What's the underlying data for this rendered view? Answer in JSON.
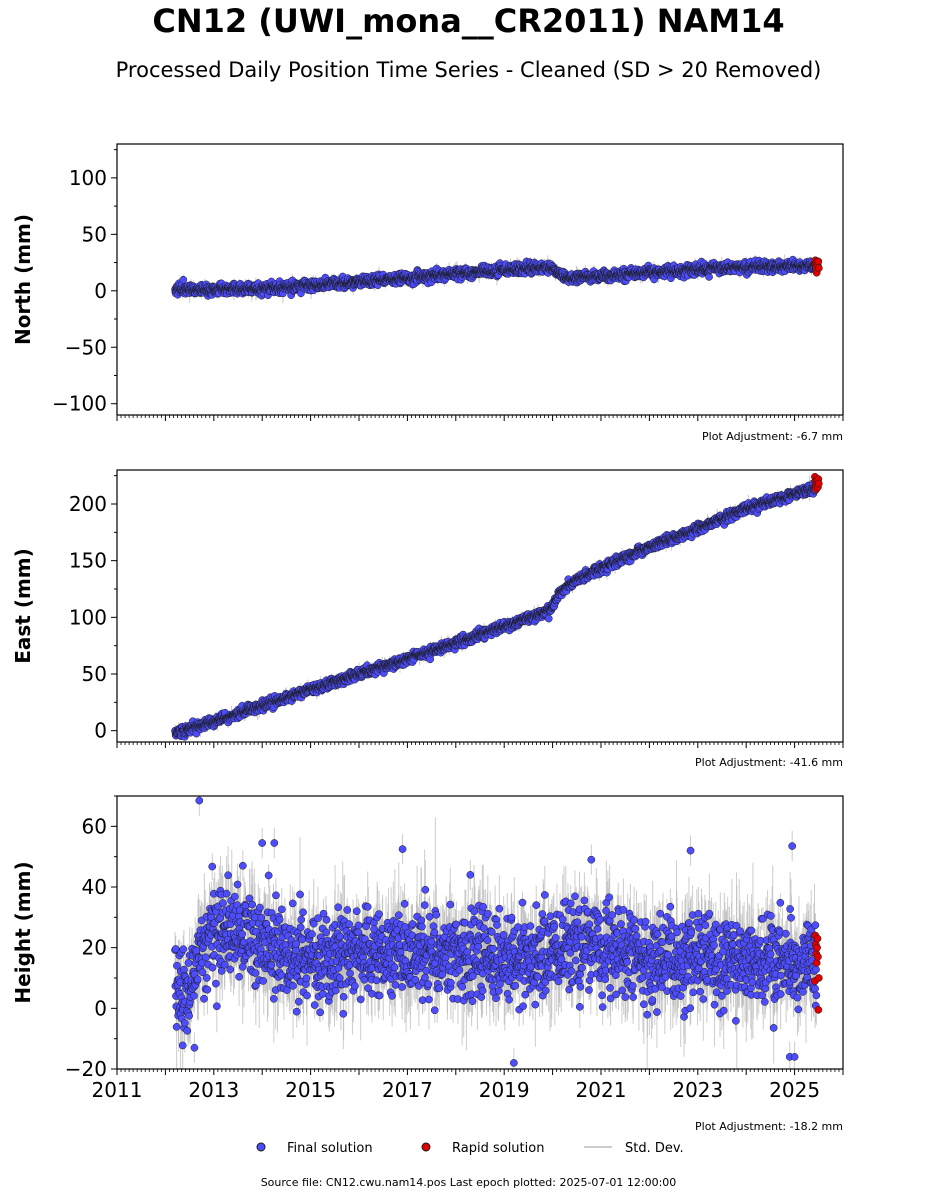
{
  "header": {
    "title": "CN12 (UWI_mona__CR2011) NAM14",
    "subtitle": "Processed Daily Position Time Series - Cleaned (SD > 20 Removed)"
  },
  "footer": {
    "source": "Source file: CN12.cwu.nam14.pos  Last epoch plotted: 2025-07-01 12:00:00"
  },
  "legend": {
    "final": "Final solution",
    "rapid": "Rapid solution",
    "stddev": "Std. Dev."
  },
  "colors": {
    "final": "#4d4dff",
    "rapid": "#e00000",
    "stddev": "#bbbbbb",
    "marker_edge": "#1a1a1a"
  },
  "chart_data": [
    {
      "type": "scatter",
      "ylabel": "North (mm)",
      "ylim": [
        -110,
        130
      ],
      "yticks": [
        -100,
        -50,
        0,
        50,
        100
      ],
      "xlim": [
        2011,
        2026
      ],
      "adjustment": "Plot Adjustment: -6.7 mm",
      "final_trend": [
        [
          2012.2,
          1
        ],
        [
          2014.0,
          2
        ],
        [
          2016.0,
          8
        ],
        [
          2018.0,
          15
        ],
        [
          2019.95,
          21
        ],
        [
          2020.3,
          11
        ],
        [
          2021.0,
          13
        ],
        [
          2022.0,
          16
        ],
        [
          2023.0,
          19
        ],
        [
          2024.0,
          21
        ],
        [
          2025.45,
          22
        ]
      ],
      "scatter_sd": 2.2,
      "err_sd": 2.5,
      "rapid": [
        25,
        27,
        23,
        21,
        16,
        26,
        24,
        22,
        26,
        20
      ]
    },
    {
      "type": "scatter",
      "ylabel": "East (mm)",
      "ylim": [
        -10,
        230
      ],
      "yticks": [
        0,
        50,
        100,
        150,
        200
      ],
      "xlim": [
        2011,
        2026
      ],
      "adjustment": "Plot Adjustment: -41.6 mm",
      "final_trend": [
        [
          2012.2,
          -2
        ],
        [
          2013.0,
          8
        ],
        [
          2014.0,
          22
        ],
        [
          2015.0,
          36
        ],
        [
          2016.0,
          50
        ],
        [
          2017.0,
          63
        ],
        [
          2018.0,
          77
        ],
        [
          2019.0,
          92
        ],
        [
          2019.95,
          106
        ],
        [
          2020.15,
          122
        ],
        [
          2020.5,
          133
        ],
        [
          2021.0,
          143
        ],
        [
          2022.0,
          162
        ],
        [
          2023.0,
          178
        ],
        [
          2024.0,
          196
        ],
        [
          2025.45,
          214
        ]
      ],
      "scatter_sd": 2.0,
      "err_sd": 2.5,
      "rapid": [
        224,
        220,
        216,
        213,
        219,
        221,
        217,
        215,
        222,
        218
      ]
    },
    {
      "type": "scatter",
      "ylabel": "Height (mm)",
      "ylim": [
        -20,
        70
      ],
      "yticks": [
        -20,
        0,
        20,
        40,
        60
      ],
      "xlim": [
        2011,
        2026
      ],
      "xticks": [
        "2011",
        "2013",
        "2015",
        "2017",
        "2019",
        "2021",
        "2023",
        "2025"
      ],
      "adjustment": "Plot Adjustment: -18.2 mm",
      "final_trend": [
        [
          2012.2,
          8
        ],
        [
          2012.5,
          4
        ],
        [
          2012.7,
          18
        ],
        [
          2013.0,
          26
        ],
        [
          2013.5,
          26
        ],
        [
          2014.0,
          20
        ],
        [
          2015.0,
          16
        ],
        [
          2016.0,
          18
        ],
        [
          2017.0,
          18
        ],
        [
          2018.0,
          18
        ],
        [
          2019.0,
          16
        ],
        [
          2020.0,
          18
        ],
        [
          2021.0,
          20
        ],
        [
          2022.0,
          18
        ],
        [
          2023.0,
          16
        ],
        [
          2024.0,
          16
        ],
        [
          2025.45,
          15
        ]
      ],
      "scatter_sd": 7,
      "err_sd": 7,
      "outliers": [
        [
          2012.7,
          68.5
        ],
        [
          2013.6,
          47
        ],
        [
          2014.0,
          54.5
        ],
        [
          2014.25,
          54.5
        ],
        [
          2016.9,
          52.5
        ],
        [
          2019.2,
          -18
        ],
        [
          2022.85,
          52
        ],
        [
          2024.95,
          53.5
        ],
        [
          2024.9,
          -16
        ],
        [
          2025.0,
          -16
        ],
        [
          2012.6,
          -13
        ],
        [
          2020.8,
          49
        ],
        [
          2018.3,
          44
        ]
      ],
      "rapid": [
        9,
        24,
        21,
        18,
        15,
        20,
        23,
        17,
        -0.5,
        10
      ]
    }
  ]
}
